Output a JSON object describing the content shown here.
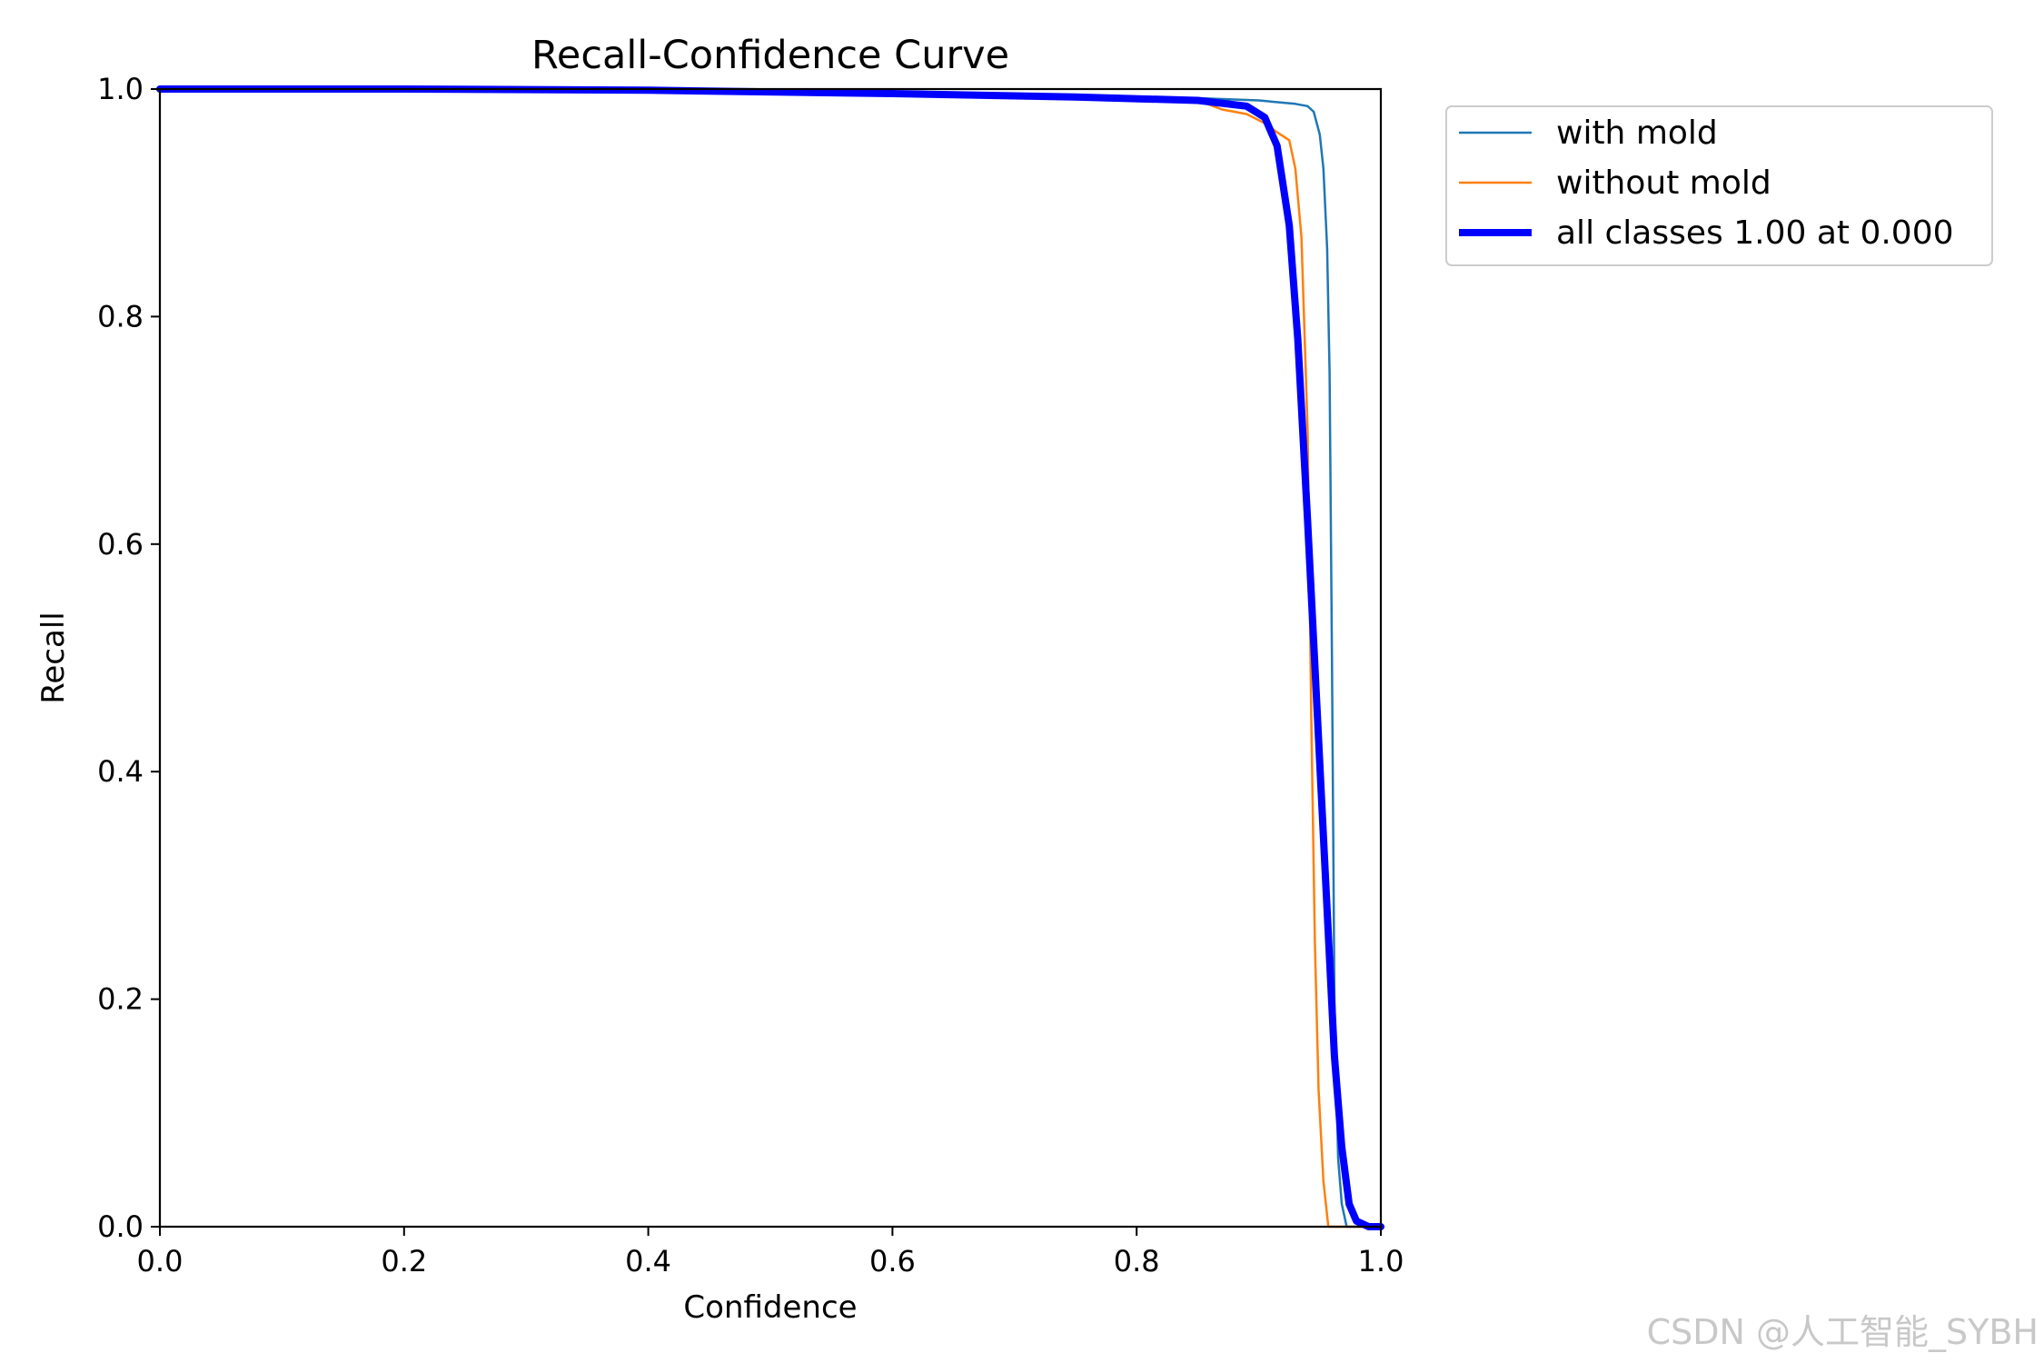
{
  "chart_data": {
    "type": "line",
    "title": "Recall-Confidence Curve",
    "xlabel": "Confidence",
    "ylabel": "Recall",
    "xlim": [
      0.0,
      1.0
    ],
    "ylim": [
      0.0,
      1.0
    ],
    "xticks": [
      "0.0",
      "0.2",
      "0.4",
      "0.6",
      "0.8",
      "1.0"
    ],
    "yticks": [
      "0.0",
      "0.2",
      "0.4",
      "0.6",
      "0.8",
      "1.0"
    ],
    "grid": false,
    "legend_position": "outside-top-right",
    "series": [
      {
        "name": "with mold",
        "color": "#1f77b4",
        "width": "thin",
        "points": [
          [
            0.0,
            1.0
          ],
          [
            0.2,
            1.0
          ],
          [
            0.4,
            0.999
          ],
          [
            0.6,
            0.997
          ],
          [
            0.75,
            0.994
          ],
          [
            0.85,
            0.992
          ],
          [
            0.9,
            0.99
          ],
          [
            0.93,
            0.987
          ],
          [
            0.94,
            0.985
          ],
          [
            0.945,
            0.98
          ],
          [
            0.95,
            0.96
          ],
          [
            0.953,
            0.93
          ],
          [
            0.956,
            0.86
          ],
          [
            0.958,
            0.75
          ],
          [
            0.96,
            0.5
          ],
          [
            0.962,
            0.2
          ],
          [
            0.965,
            0.06
          ],
          [
            0.968,
            0.02
          ],
          [
            0.972,
            0.0
          ],
          [
            1.0,
            0.0
          ]
        ]
      },
      {
        "name": "without mold",
        "color": "#ff7f0e",
        "width": "thin",
        "points": [
          [
            0.0,
            1.0
          ],
          [
            0.2,
            1.0
          ],
          [
            0.4,
            0.999
          ],
          [
            0.6,
            0.997
          ],
          [
            0.75,
            0.994
          ],
          [
            0.85,
            0.99
          ],
          [
            0.87,
            0.982
          ],
          [
            0.89,
            0.978
          ],
          [
            0.905,
            0.97
          ],
          [
            0.915,
            0.962
          ],
          [
            0.925,
            0.955
          ],
          [
            0.93,
            0.93
          ],
          [
            0.935,
            0.87
          ],
          [
            0.94,
            0.7
          ],
          [
            0.943,
            0.45
          ],
          [
            0.946,
            0.25
          ],
          [
            0.949,
            0.12
          ],
          [
            0.953,
            0.04
          ],
          [
            0.957,
            0.0
          ],
          [
            1.0,
            0.0
          ]
        ]
      },
      {
        "name": "all classes 1.00 at 0.000",
        "color": "#0000ff",
        "width": "thick",
        "points": [
          [
            0.0,
            1.0
          ],
          [
            0.2,
            1.0
          ],
          [
            0.4,
            0.999
          ],
          [
            0.6,
            0.996
          ],
          [
            0.75,
            0.993
          ],
          [
            0.85,
            0.99
          ],
          [
            0.89,
            0.985
          ],
          [
            0.905,
            0.975
          ],
          [
            0.915,
            0.95
          ],
          [
            0.925,
            0.88
          ],
          [
            0.932,
            0.78
          ],
          [
            0.94,
            0.62
          ],
          [
            0.948,
            0.45
          ],
          [
            0.955,
            0.3
          ],
          [
            0.962,
            0.15
          ],
          [
            0.968,
            0.07
          ],
          [
            0.974,
            0.02
          ],
          [
            0.98,
            0.005
          ],
          [
            0.99,
            0.0
          ],
          [
            1.0,
            0.0
          ]
        ]
      }
    ]
  },
  "watermark": "CSDN @人工智能_SYBH"
}
